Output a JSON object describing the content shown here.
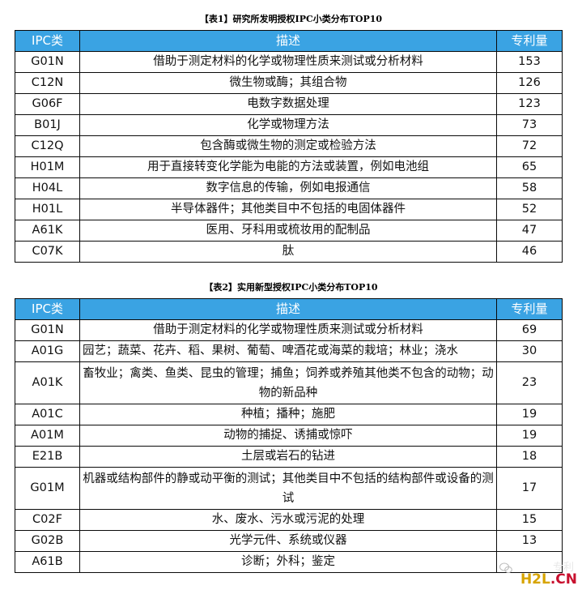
{
  "table1": {
    "title": "【表1】研究所发明授权IPC小类分布TOP10",
    "headers": [
      "IPC类",
      "描述",
      "专利量"
    ],
    "rows": [
      [
        "G01N",
        "借助于测定材料的化学或物理性质来测试或分析材料",
        "153"
      ],
      [
        "C12N",
        "微生物或酶；其组合物",
        "126"
      ],
      [
        "G06F",
        "电数字数据处理",
        "123"
      ],
      [
        "B01J",
        "化学或物理方法",
        "73"
      ],
      [
        "C12Q",
        "包含酶或微生物的测定或检验方法",
        "72"
      ],
      [
        "H01M",
        "用于直接转变化学能为电能的方法或装置，例如电池组",
        "65"
      ],
      [
        "H04L",
        "数字信息的传输，例如电报通信",
        "58"
      ],
      [
        "H01L",
        "半导体器件；其他类目中不包括的电固体器件",
        "52"
      ],
      [
        "A61K",
        "医用、牙科用或梳妆用的配制品",
        "47"
      ],
      [
        "C07K",
        "肽",
        "46"
      ]
    ]
  },
  "table2": {
    "title": "【表2】实用新型授权IPC小类分布TOP10",
    "headers": [
      "IPC类",
      "描述",
      "专利量"
    ],
    "rows": [
      [
        "G01N",
        "借助于测定材料的化学或物理性质来测试或分析材料",
        "69"
      ],
      [
        "A01G",
        "园艺；蔬菜、花卉、稻、果树、葡萄、啤酒花或海菜的栽培；林业；浇水",
        "30"
      ],
      [
        "A01K",
        "畜牧业；禽类、鱼类、昆虫的管理；捕鱼；饲养或养殖其他类不包含的动物；动物的新品种",
        "23"
      ],
      [
        "A01C",
        "种植；播种；施肥",
        "19"
      ],
      [
        "A01M",
        "动物的捕捉、诱捕或惊吓",
        "19"
      ],
      [
        "E21B",
        "土层或岩石的钻进",
        "18"
      ],
      [
        "G01M",
        "机器或结构部件的静或动平衡的测试；其他类目中不包括的结构部件或设备的测试",
        "17"
      ],
      [
        "C02F",
        "水、废水、污水或污泥的处理",
        "15"
      ],
      [
        "G02B",
        "光学元件、系统或仪器",
        "13"
      ],
      [
        "A61B",
        "诊断；外科；鉴定",
        ""
      ]
    ]
  },
  "watermark": {
    "text": "专利",
    "logo_part1": "H2L",
    "logo_part2": ".CN"
  },
  "colors": {
    "header_bg": "#3aa3e3",
    "header_text": "#ffffff",
    "logo_gold": "#d7a400",
    "logo_red": "#c8102e"
  }
}
